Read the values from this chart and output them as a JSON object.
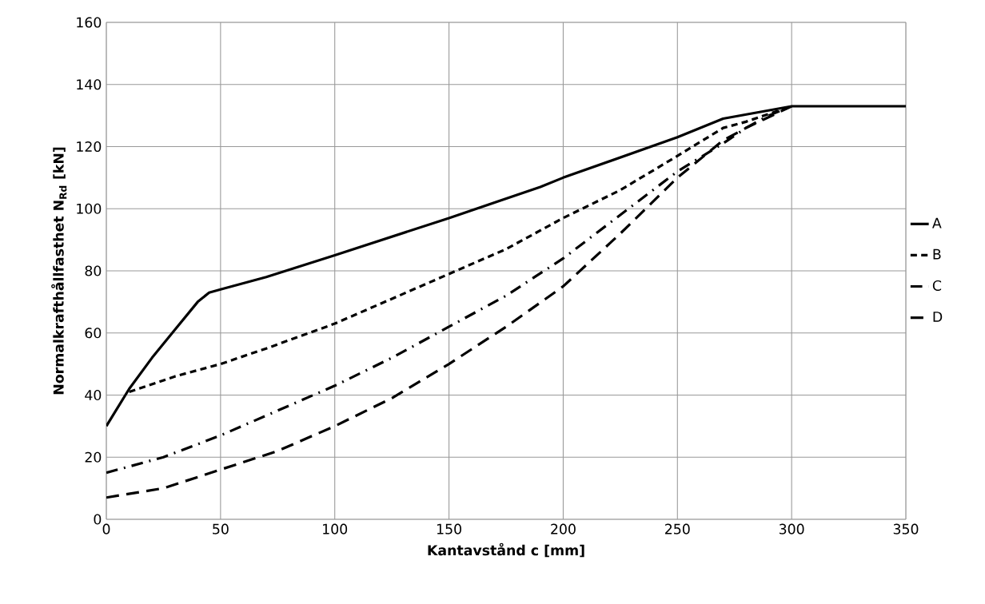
{
  "chart_data": {
    "type": "line",
    "xlabel": "Kantavstånd c [mm]",
    "ylabel": "Normalkrafthållfasthet N$_{Rd}$ [kN]",
    "xlim": [
      0,
      350
    ],
    "xticks": [
      0,
      50,
      100,
      150,
      200,
      250,
      300,
      350
    ],
    "ylim": [
      0,
      160
    ],
    "yticks": [
      0,
      20,
      40,
      60,
      80,
      100,
      120,
      140,
      160
    ],
    "grid": true,
    "legend": "right",
    "marker": "none",
    "series": [
      {
        "name": "A",
        "color": "#000000",
        "line_style": "solid",
        "x": [
          0,
          10,
          20,
          30,
          40,
          45,
          50,
          70,
          100,
          150,
          190,
          200,
          250,
          270,
          300,
          350
        ],
        "values": [
          30,
          42,
          52,
          61,
          70,
          73,
          74,
          78,
          85,
          97,
          107,
          110,
          123,
          129,
          133,
          133
        ]
      },
      {
        "name": "B",
        "color": "#000000",
        "line_style": "dashed",
        "x": [
          10,
          30,
          50,
          70,
          100,
          150,
          175,
          200,
          225,
          250,
          270,
          280,
          300
        ],
        "values": [
          41,
          46,
          50,
          55,
          63,
          79,
          87,
          97,
          106,
          117,
          126,
          128,
          133
        ]
      },
      {
        "name": "C",
        "color": "#000000",
        "line_style": "dashdot",
        "x": [
          0,
          25,
          50,
          75,
          100,
          125,
          150,
          175,
          200,
          225,
          250,
          270,
          280,
          290,
          300
        ],
        "values": [
          15,
          20,
          27,
          35,
          43,
          52,
          62,
          72,
          84,
          98,
          112,
          121,
          126,
          130,
          133
        ]
      },
      {
        "name": "D",
        "color": "#000000",
        "line_style": "longdashed",
        "x": [
          0,
          25,
          50,
          75,
          100,
          125,
          150,
          175,
          200,
          225,
          250,
          270,
          280,
          300
        ],
        "values": [
          7,
          10,
          16,
          22,
          30,
          39,
          50,
          62,
          75,
          92,
          110,
          122,
          126,
          133
        ]
      }
    ]
  }
}
